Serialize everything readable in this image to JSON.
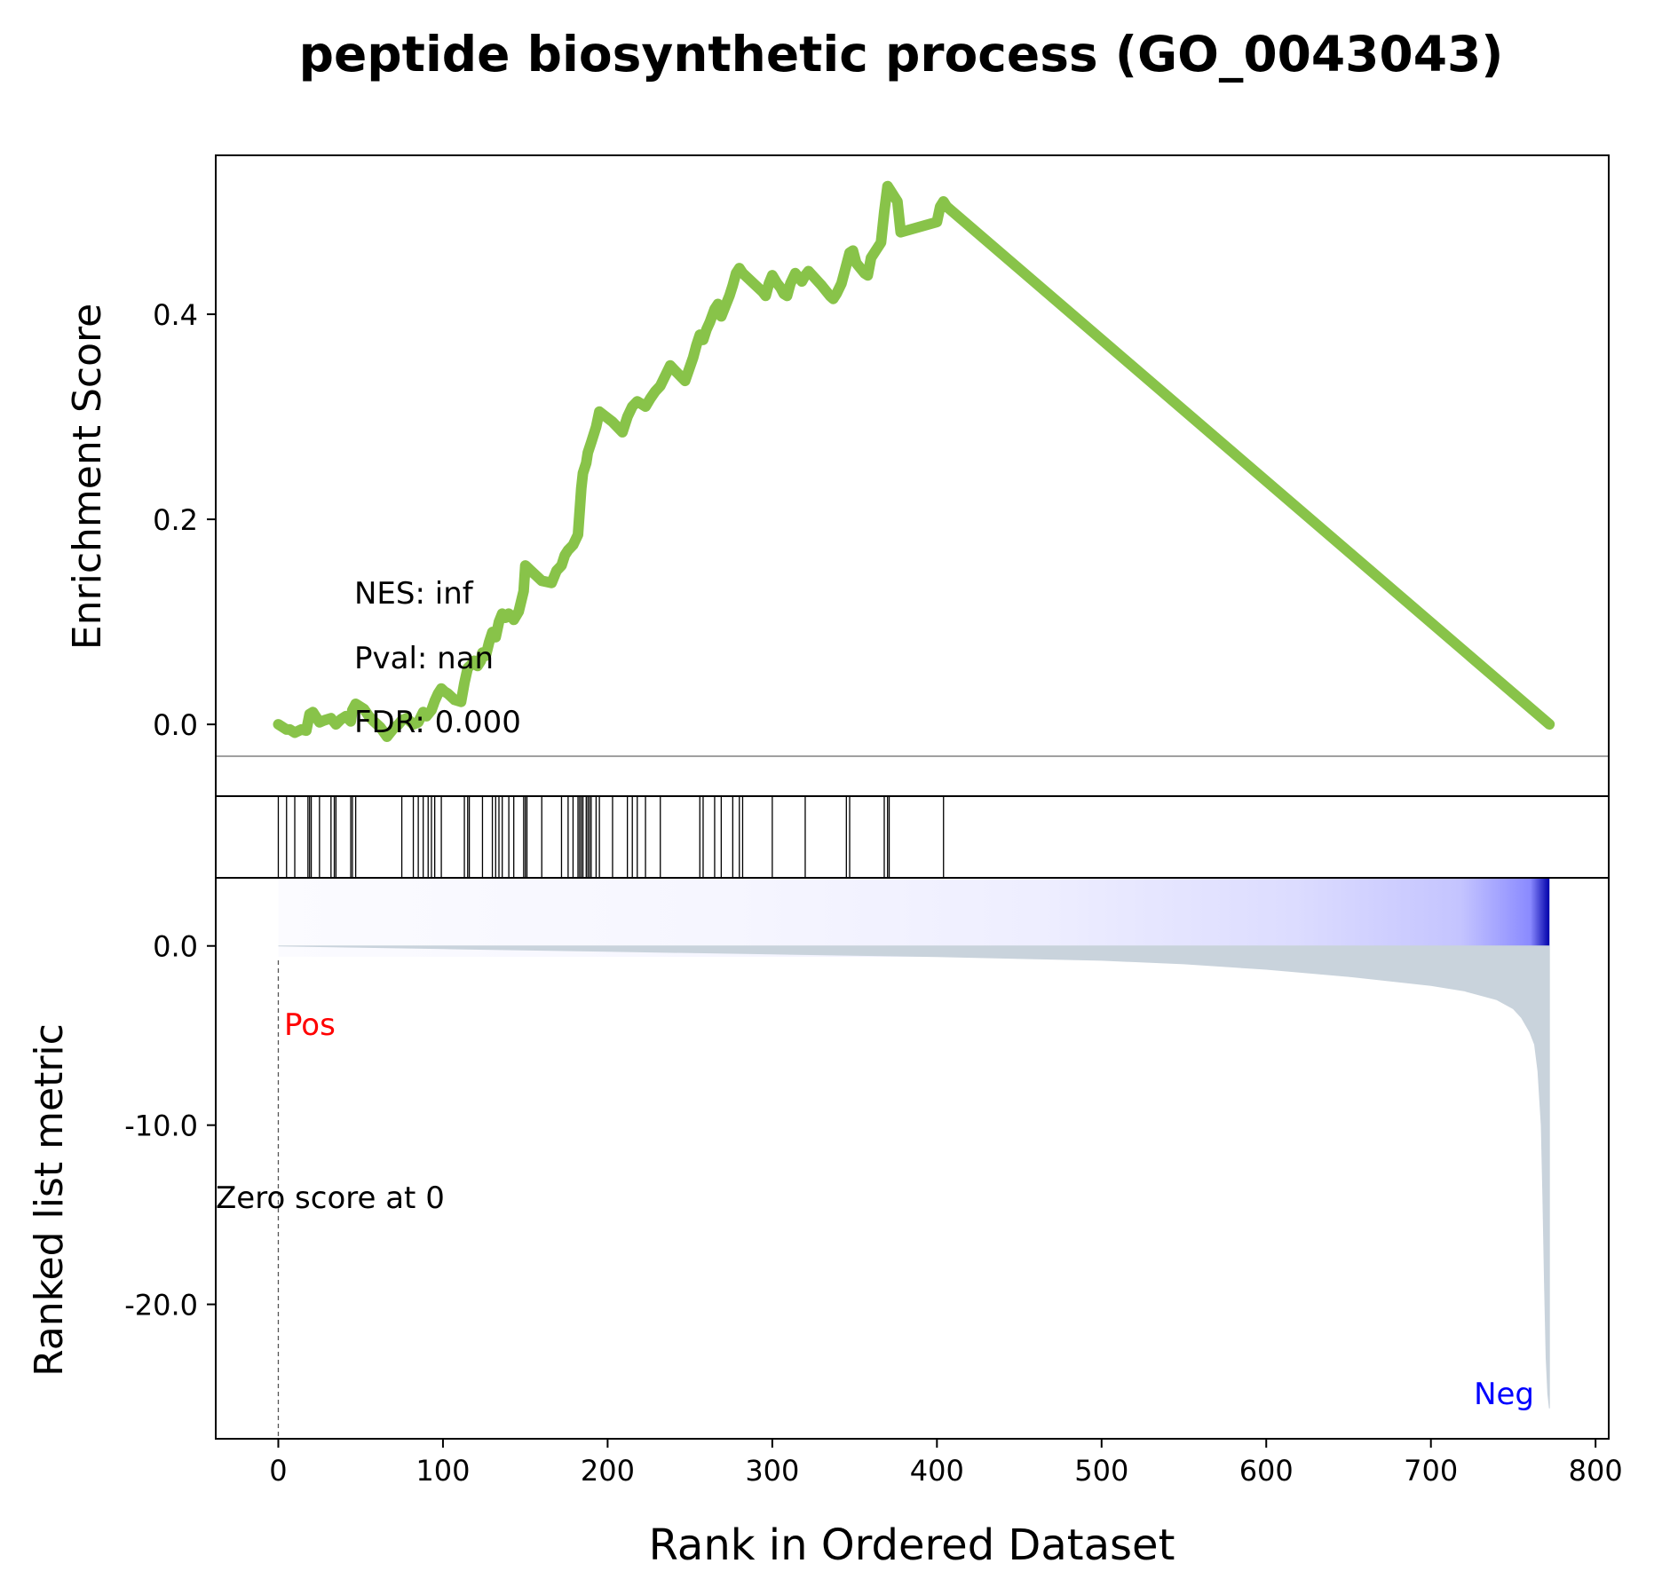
{
  "chart_data": {
    "type": "line",
    "title": "peptide biosynthetic process (GO_0043043)",
    "xlabel": "Rank in Ordered Dataset",
    "xlim": [
      -38,
      808
    ],
    "x_ticks": [
      0,
      100,
      200,
      300,
      400,
      500,
      600,
      700,
      800
    ],
    "x_tick_labels": [
      "0",
      "100",
      "200",
      "300",
      "400",
      "500",
      "600",
      "700",
      "800"
    ],
    "colors": {
      "es_line": "#88c349",
      "hit_line": "#000000",
      "metric_fill": "#c9d3dc",
      "pos_label": "#ff0000",
      "neg_label": "#0000ff",
      "zero_line": "#808080"
    },
    "panels": {
      "es": {
        "ylabel": "Enrichment Score",
        "ylim": [
          -0.07,
          0.555
        ],
        "y_ticks": [
          0.0,
          0.2,
          0.4
        ],
        "y_tick_labels": [
          "0.0",
          "0.2",
          "0.4"
        ],
        "stats": {
          "nes": "NES: inf",
          "pval": "Pval: nan",
          "fdr": "FDR: 0.000"
        },
        "series": [
          {
            "x": [
              0,
              5,
              7,
              10,
              14,
              17,
              19,
              21,
              25,
              28,
              32,
              35,
              38,
              41,
              44,
              45,
              47,
              52,
              55,
              58,
              62,
              66,
              70,
              73,
              75,
              78,
              82,
              85,
              88,
              90,
              93,
              95,
              97,
              99,
              101,
              103,
              107,
              111,
              113,
              115,
              117,
              119,
              121,
              123,
              124,
              126,
              128,
              130,
              132,
              134,
              136,
              138,
              140,
              143,
              146,
              149,
              150,
              152,
              160,
              166,
              169,
              172,
              174,
              176,
              179,
              182,
              184,
              185,
              187,
              188,
              190,
              193,
              195,
              203,
              209,
              212,
              215,
              218,
              223,
              226,
              229,
              232,
              235,
              238,
              241,
              247,
              252,
              254,
              256,
              258,
              260,
              262,
              265,
              267,
              269,
              272,
              274,
              276,
              278,
              280,
              282,
              294,
              296,
              298,
              300,
              303,
              305,
              307,
              309,
              311,
              314,
              316,
              318,
              320,
              322,
              330,
              335,
              337,
              339,
              342,
              345,
              347,
              349,
              351,
              354,
              356,
              358,
              360,
              366,
              368,
              370,
              372,
              374,
              376,
              378,
              400,
              402,
              404,
              406,
              772
            ],
            "y": [
              0.0,
              -0.005,
              -0.005,
              -0.008,
              -0.005,
              -0.006,
              0.01,
              0.012,
              0.002,
              0.004,
              0.006,
              0.0,
              0.005,
              0.008,
              0.003,
              0.014,
              0.02,
              0.015,
              0.008,
              0.003,
              -0.003,
              -0.012,
              -0.004,
              0.0,
              0.004,
              0.006,
              0.0,
              0.002,
              0.012,
              0.008,
              0.014,
              0.023,
              0.03,
              0.035,
              0.032,
              0.03,
              0.024,
              0.022,
              0.04,
              0.055,
              0.058,
              0.062,
              0.057,
              0.062,
              0.07,
              0.067,
              0.08,
              0.09,
              0.085,
              0.1,
              0.108,
              0.104,
              0.108,
              0.102,
              0.11,
              0.13,
              0.155,
              0.152,
              0.14,
              0.138,
              0.15,
              0.155,
              0.165,
              0.17,
              0.175,
              0.185,
              0.23,
              0.245,
              0.255,
              0.265,
              0.275,
              0.29,
              0.305,
              0.295,
              0.285,
              0.3,
              0.31,
              0.315,
              0.31,
              0.318,
              0.325,
              0.33,
              0.34,
              0.35,
              0.345,
              0.335,
              0.358,
              0.37,
              0.38,
              0.375,
              0.385,
              0.392,
              0.405,
              0.41,
              0.398,
              0.41,
              0.418,
              0.428,
              0.44,
              0.445,
              0.44,
              0.422,
              0.418,
              0.43,
              0.438,
              0.43,
              0.426,
              0.42,
              0.418,
              0.43,
              0.44,
              0.436,
              0.432,
              0.438,
              0.442,
              0.428,
              0.418,
              0.415,
              0.42,
              0.43,
              0.448,
              0.46,
              0.462,
              0.45,
              0.444,
              0.44,
              0.438,
              0.455,
              0.47,
              0.5,
              0.525,
              0.52,
              0.515,
              0.51,
              0.48,
              0.49,
              0.505,
              0.51,
              0.505,
              0.0
            ]
          }
        ]
      },
      "hits": {
        "positions": [
          0,
          5,
          10,
          18,
          19,
          20,
          25,
          32,
          34,
          35,
          44,
          45,
          47,
          75,
          82,
          85,
          88,
          91,
          93,
          95,
          99,
          113,
          115,
          116,
          124,
          130,
          132,
          134,
          136,
          140,
          143,
          149,
          150,
          151,
          160,
          172,
          176,
          179,
          182,
          183,
          184,
          185,
          187,
          188,
          189,
          190,
          193,
          195,
          203,
          212,
          215,
          218,
          223,
          232,
          256,
          258,
          265,
          269,
          276,
          280,
          282,
          300,
          320,
          345,
          347,
          368,
          370,
          371,
          404
        ]
      },
      "metric": {
        "ylabel": "Ranked list metric",
        "ylim": [
          -27.5,
          3.8
        ],
        "y_ticks": [
          0.0,
          -10.0,
          -20.0
        ],
        "y_tick_labels": [
          "0.0",
          "-10.0",
          "-20.0"
        ],
        "pos_label": "Pos",
        "neg_label": "Neg",
        "zero_cross_label": "Zero score at 0",
        "n_genes": 772,
        "profile_x": [
          0,
          50,
          100,
          200,
          300,
          400,
          500,
          550,
          600,
          650,
          700,
          720,
          740,
          750,
          755,
          760,
          763,
          765,
          767,
          768,
          769,
          770,
          771,
          772
        ],
        "profile_y": [
          0.0,
          -0.08,
          -0.15,
          -0.3,
          -0.45,
          -0.6,
          -0.8,
          -1.0,
          -1.3,
          -1.7,
          -2.2,
          -2.5,
          -3.0,
          -3.5,
          -4.0,
          -4.8,
          -5.5,
          -7.0,
          -10.0,
          -14.0,
          -19.0,
          -23.0,
          -25.0,
          -25.8
        ]
      }
    }
  }
}
